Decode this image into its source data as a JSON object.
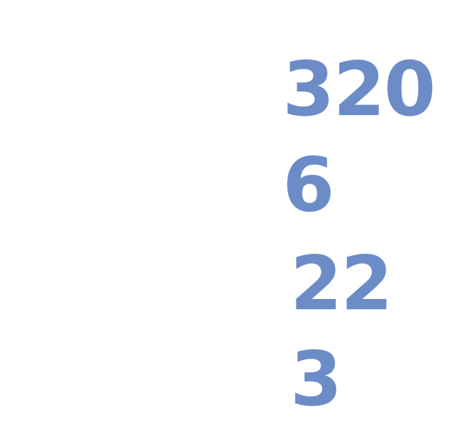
{
  "accent_color": "#6c8cc8",
  "numbers": [
    {
      "value": "320"
    },
    {
      "value": "6"
    },
    {
      "value": "22"
    },
    {
      "value": "3"
    }
  ]
}
